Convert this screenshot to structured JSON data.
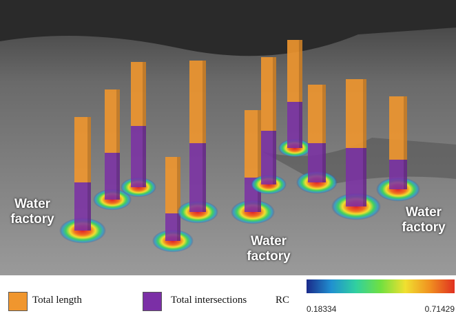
{
  "annotations": [
    "Water factory",
    "Water factory",
    "Water factory"
  ],
  "legend": {
    "items": [
      {
        "label": "Total length",
        "color": "#f0962e"
      },
      {
        "label": "Total intersections",
        "color": "#7b2fa6"
      }
    ],
    "colorbar": {
      "title": "RC",
      "min": "0.18334",
      "max": "0.71429"
    }
  }
}
